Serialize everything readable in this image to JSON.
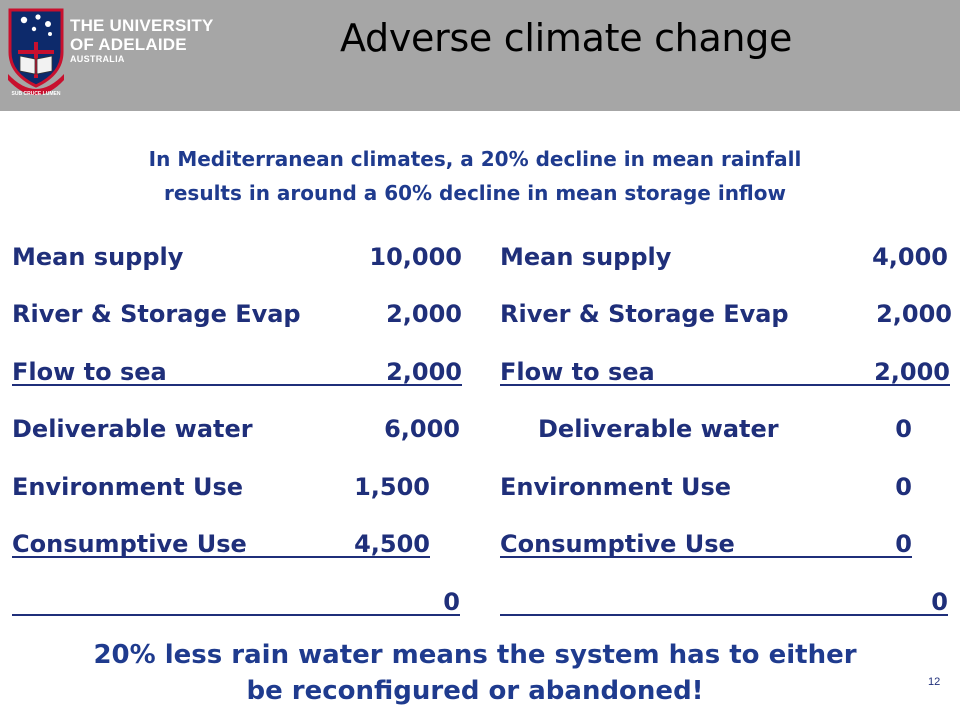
{
  "header": {
    "university_line1": "THE UNIVERSITY",
    "university_line2": "OF ADELAIDE",
    "university_line3": "AUSTRALIA",
    "crest_motto": "SUB CRUCE LUMEN",
    "title": "Adverse climate change"
  },
  "subtitle": {
    "line1": "In Mediterranean climates, a 20% decline in mean rainfall",
    "line2": "results in around a 60% decline in mean storage inflow"
  },
  "left_ledger": [
    {
      "label": "Mean supply",
      "value": "10,000"
    },
    {
      "label": "River & Storage Evap",
      "value": "2,000"
    },
    {
      "label": "Flow to sea",
      "value": "2,000"
    },
    {
      "label": "Deliverable water",
      "value": "6,000"
    },
    {
      "label": "Environment Use",
      "value": "1,500"
    },
    {
      "label": "Consumptive Use",
      "value": "4,500"
    },
    {
      "label": "",
      "value": "0"
    }
  ],
  "right_ledger": [
    {
      "label": "Mean supply",
      "value": "4,000"
    },
    {
      "label": "River & Storage Evap",
      "value": "2,000"
    },
    {
      "label": "Flow to sea",
      "value": "2,000"
    },
    {
      "label": "Deliverable water",
      "value": "0"
    },
    {
      "label": "Environment Use",
      "value": "0"
    },
    {
      "label": "Consumptive Use",
      "value": "0"
    },
    {
      "label": "",
      "value": "0"
    }
  ],
  "conclusion": {
    "line1": "20% less rain water means the system has to either",
    "line2": "be reconfigured or abandoned!"
  },
  "page_number": "12",
  "colors": {
    "header_bg": "#a6a6a6",
    "text_blue": "#1f2f7a",
    "crest_red": "#c8102e",
    "crest_navy": "#0d2a6b"
  }
}
